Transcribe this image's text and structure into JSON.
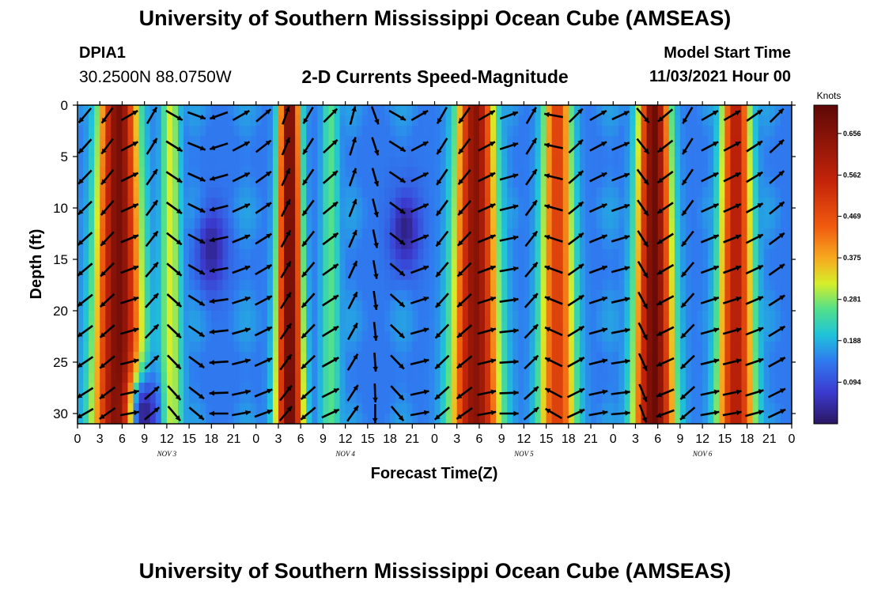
{
  "header": {
    "title": "University of Southern Mississippi Ocean Cube (AMSEAS)",
    "station_id": "DPIA1",
    "station_coords": "30.2500N  88.0750W",
    "plot_title": "2-D Currents Speed-Magnitude",
    "model_start_label": "Model Start Time",
    "model_start_value": "11/03/2021 Hour 00"
  },
  "footer": {
    "title": "University of Southern Mississippi Ocean Cube (AMSEAS)"
  },
  "chart_data": {
    "type": "heatmap",
    "title": "2-D Currents Speed-Magnitude",
    "xlabel": "Forecast Time(Z)",
    "ylabel": "Depth (ft)",
    "xlim": [
      0,
      96
    ],
    "ylim": [
      31,
      0
    ],
    "x_ticks": [
      0,
      3,
      6,
      9,
      12,
      15,
      18,
      21,
      24,
      27,
      30,
      33,
      36,
      39,
      42,
      45,
      48,
      51,
      54,
      57,
      60,
      63,
      66,
      69,
      72,
      75,
      78,
      81,
      84,
      87,
      90,
      93,
      96
    ],
    "x_tick_labels": [
      "0",
      "3",
      "6",
      "9",
      "12",
      "15",
      "18",
      "21",
      "0",
      "3",
      "6",
      "9",
      "12",
      "15",
      "18",
      "21",
      "0",
      "3",
      "6",
      "9",
      "12",
      "15",
      "18",
      "21",
      "0",
      "3",
      "6",
      "9",
      "12",
      "15",
      "18",
      "21",
      "0"
    ],
    "date_labels": [
      {
        "label": "NOV 3",
        "x": 12
      },
      {
        "label": "NOV 4",
        "x": 36
      },
      {
        "label": "NOV 5",
        "x": 60
      },
      {
        "label": "NOV 6",
        "x": 84
      }
    ],
    "y_ticks": [
      0,
      5,
      10,
      15,
      20,
      25,
      30
    ],
    "colorbar": {
      "units": "Knots",
      "min": 0.0,
      "max": 0.72,
      "ticks": [
        0.094,
        0.188,
        0.281,
        0.375,
        0.469,
        0.562,
        0.656
      ],
      "tick_labels": [
        "0.094",
        "0.188",
        "0.281",
        "0.375",
        "0.469",
        "0.562",
        "0.656"
      ]
    },
    "speed_peaks": [
      {
        "t": 5.5,
        "speed": 0.68,
        "width": 2.4
      },
      {
        "t": 12.5,
        "speed": 0.32,
        "width": 1.2
      },
      {
        "t": 28.5,
        "speed": 0.7,
        "width": 1.3
      },
      {
        "t": 34.0,
        "speed": 0.26,
        "width": 1.1
      },
      {
        "t": 53.5,
        "speed": 0.65,
        "width": 2.3
      },
      {
        "t": 64.5,
        "speed": 0.5,
        "width": 1.8
      },
      {
        "t": 77.5,
        "speed": 0.7,
        "width": 1.9
      },
      {
        "t": 88.5,
        "speed": 0.58,
        "width": 1.8
      }
    ],
    "background_speed": 0.14,
    "low_speed_zones": [
      {
        "t": 18,
        "depth": 14,
        "speed": 0.03
      },
      {
        "t": 44,
        "depth": 12,
        "speed": 0.02
      },
      {
        "t": 9,
        "depth": 30,
        "speed": 0.02
      }
    ],
    "vector_times": [
      1,
      4,
      7,
      10,
      13,
      16,
      19,
      22,
      25,
      28,
      31,
      34,
      37,
      40,
      43,
      46,
      49,
      52,
      55,
      58,
      61,
      64,
      67,
      70,
      73,
      76,
      79,
      82,
      85,
      88,
      91,
      94
    ],
    "vector_depths": [
      1,
      4,
      7,
      10,
      13,
      16,
      19,
      22,
      25,
      28,
      30
    ],
    "vector_directions_deg": [
      220,
      215,
      60,
      30,
      120,
      110,
      250,
      60,
      50,
      20,
      210,
      45,
      15,
      160,
      120,
      60,
      210,
      215,
      60,
      70,
      30,
      280,
      45,
      60,
      65,
      140,
      230,
      210,
      60,
      60,
      55,
      45
    ],
    "vector_speeds": [
      0.6,
      0.65,
      0.3,
      0.2,
      0.15,
      0.2,
      0.5,
      0.25,
      0.2,
      0.65,
      0.4,
      0.25,
      0.2,
      0.1,
      0.2,
      0.3,
      0.55,
      0.6,
      0.3,
      0.25,
      0.45,
      0.35,
      0.3,
      0.35,
      0.5,
      0.65,
      0.6,
      0.5,
      0.3,
      0.35,
      0.5,
      0.45
    ]
  }
}
